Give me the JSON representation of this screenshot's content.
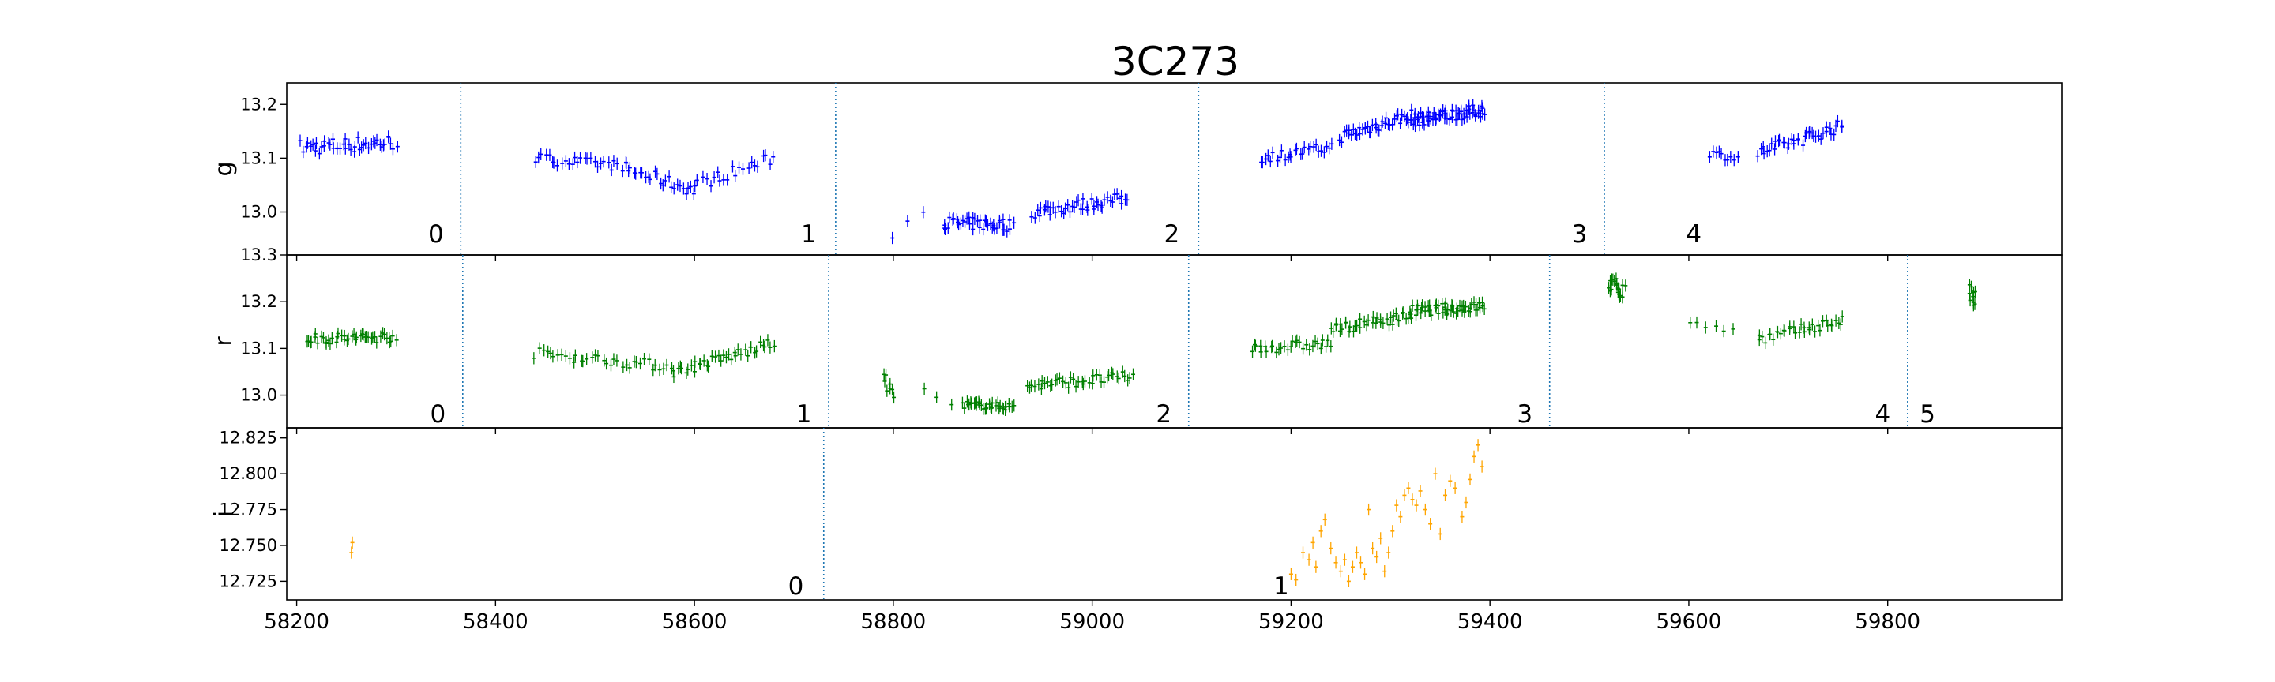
{
  "figure_title": "3C273",
  "chart_data": [
    {
      "type": "scatter",
      "title": "3C273",
      "ylabel": "g",
      "color": "#0000ff",
      "xlim": [
        58190,
        59975
      ],
      "ylim": [
        12.92,
        13.24
      ],
      "yticks": [
        "13.0",
        "13.1",
        "13.2",
        "13.3"
      ],
      "ytick_values": [
        13.0,
        13.1,
        13.2,
        13.3
      ],
      "grid": false,
      "segment_dividers": [
        58365,
        58742,
        59107,
        59515
      ],
      "segment_labels": [
        {
          "text": "0",
          "x": 58340,
          "y": 12.96
        },
        {
          "text": "1",
          "x": 58715,
          "y": 12.96
        },
        {
          "text": "2",
          "x": 59080,
          "y": 12.96
        },
        {
          "text": "3",
          "x": 59490,
          "y": 12.96
        },
        {
          "text": "4",
          "x": 59605,
          "y": 12.96
        }
      ],
      "point_groups": [
        {
          "x0": 58205,
          "x1": 58300,
          "y0": 13.12,
          "y1": 13.13,
          "n": 45,
          "spread": 0.015
        },
        {
          "x0": 58440,
          "x1": 58530,
          "y0": 13.1,
          "y1": 13.085,
          "n": 28,
          "spread": 0.01
        },
        {
          "x0": 58530,
          "x1": 58600,
          "y0": 13.08,
          "y1": 13.04,
          "n": 25,
          "spread": 0.012
        },
        {
          "x0": 58600,
          "x1": 58680,
          "y0": 13.05,
          "y1": 13.1,
          "n": 22,
          "spread": 0.012
        },
        {
          "x0": 58800,
          "x1": 58830,
          "y0": 12.96,
          "y1": 13.0,
          "n": 3,
          "spread": 0.01
        },
        {
          "x0": 58850,
          "x1": 58920,
          "y0": 12.98,
          "y1": 12.975,
          "n": 40,
          "spread": 0.012
        },
        {
          "x0": 58940,
          "x1": 59035,
          "y0": 13.0,
          "y1": 13.025,
          "n": 45,
          "spread": 0.012
        },
        {
          "x0": 59170,
          "x1": 59240,
          "y0": 13.1,
          "y1": 13.12,
          "n": 28,
          "spread": 0.01
        },
        {
          "x0": 59250,
          "x1": 59320,
          "y0": 13.14,
          "y1": 13.18,
          "n": 40,
          "spread": 0.012
        },
        {
          "x0": 59320,
          "x1": 59395,
          "y0": 13.17,
          "y1": 13.19,
          "n": 70,
          "spread": 0.012
        },
        {
          "x0": 59620,
          "x1": 59650,
          "y0": 13.11,
          "y1": 13.1,
          "n": 10,
          "spread": 0.008
        },
        {
          "x0": 59670,
          "x1": 59755,
          "y0": 13.11,
          "y1": 13.16,
          "n": 40,
          "spread": 0.012
        }
      ]
    },
    {
      "type": "scatter",
      "ylabel": "r",
      "color": "#008000",
      "xlim": [
        58190,
        59975
      ],
      "ylim": [
        12.93,
        13.3
      ],
      "yticks": [
        "13.0",
        "13.1",
        "13.2",
        "13.3"
      ],
      "ytick_values": [
        13.0,
        13.1,
        13.2,
        13.3
      ],
      "grid": false,
      "segment_dividers": [
        58367,
        58735,
        59097,
        59460,
        59820
      ],
      "segment_labels": [
        {
          "text": "0",
          "x": 58342,
          "y": 12.96
        },
        {
          "text": "1",
          "x": 58710,
          "y": 12.96
        },
        {
          "text": "2",
          "x": 59072,
          "y": 12.96
        },
        {
          "text": "3",
          "x": 59435,
          "y": 12.96
        },
        {
          "text": "4",
          "x": 59795,
          "y": 12.96
        },
        {
          "text": "5",
          "x": 59840,
          "y": 12.96
        }
      ],
      "point_groups": [
        {
          "x0": 58210,
          "x1": 58300,
          "y0": 13.12,
          "y1": 13.125,
          "n": 45,
          "spread": 0.012
        },
        {
          "x0": 58440,
          "x1": 58580,
          "y0": 13.09,
          "y1": 13.06,
          "n": 38,
          "spread": 0.012
        },
        {
          "x0": 58580,
          "x1": 58680,
          "y0": 13.05,
          "y1": 13.11,
          "n": 38,
          "spread": 0.012
        },
        {
          "x0": 58790,
          "x1": 58800,
          "y0": 13.04,
          "y1": 13.0,
          "n": 8,
          "spread": 0.015
        },
        {
          "x0": 58830,
          "x1": 58860,
          "y0": 13.01,
          "y1": 12.98,
          "n": 3,
          "spread": 0.008
        },
        {
          "x0": 58870,
          "x1": 58920,
          "y0": 12.98,
          "y1": 12.975,
          "n": 35,
          "spread": 0.008
        },
        {
          "x0": 58935,
          "x1": 59040,
          "y0": 13.02,
          "y1": 13.04,
          "n": 42,
          "spread": 0.012
        },
        {
          "x0": 59160,
          "x1": 59240,
          "y0": 13.1,
          "y1": 13.11,
          "n": 30,
          "spread": 0.012
        },
        {
          "x0": 59240,
          "x1": 59320,
          "y0": 13.14,
          "y1": 13.17,
          "n": 40,
          "spread": 0.012
        },
        {
          "x0": 59320,
          "x1": 59395,
          "y0": 13.18,
          "y1": 13.19,
          "n": 55,
          "spread": 0.012
        },
        {
          "x0": 59520,
          "x1": 59535,
          "y0": 13.24,
          "y1": 13.22,
          "n": 20,
          "spread": 0.018
        },
        {
          "x0": 59600,
          "x1": 59645,
          "y0": 13.16,
          "y1": 13.14,
          "n": 6,
          "spread": 0.015
        },
        {
          "x0": 59670,
          "x1": 59755,
          "y0": 13.12,
          "y1": 13.16,
          "n": 35,
          "spread": 0.012
        },
        {
          "x0": 59882,
          "x1": 59888,
          "y0": 13.22,
          "y1": 13.2,
          "n": 10,
          "spread": 0.02
        }
      ]
    },
    {
      "type": "scatter",
      "ylabel": "i",
      "color": "#ffa500",
      "xlim": [
        58190,
        59975
      ],
      "ylim": [
        12.712,
        12.832
      ],
      "yticks": [
        "12.725",
        "12.750",
        "12.775",
        "12.800",
        "12.825"
      ],
      "ytick_values": [
        12.725,
        12.75,
        12.775,
        12.8,
        12.825
      ],
      "xticks": [
        "58200",
        "58400",
        "58600",
        "58800",
        "59000",
        "59200",
        "59400",
        "59600",
        "59800"
      ],
      "xtick_values": [
        58200,
        58400,
        58600,
        58800,
        59000,
        59200,
        59400,
        59600,
        59800
      ],
      "grid": false,
      "segment_dividers": [
        58730
      ],
      "segment_labels": [
        {
          "text": "0",
          "x": 58702,
          "y": 12.722
        },
        {
          "text": "1",
          "x": 59190,
          "y": 12.722
        }
      ],
      "points": [
        [
          58255,
          12.745
        ],
        [
          58256,
          12.752
        ],
        [
          59200,
          12.73
        ],
        [
          59205,
          12.726
        ],
        [
          59212,
          12.745
        ],
        [
          59218,
          12.74
        ],
        [
          59222,
          12.752
        ],
        [
          59225,
          12.735
        ],
        [
          59230,
          12.76
        ],
        [
          59234,
          12.768
        ],
        [
          59240,
          12.748
        ],
        [
          59245,
          12.738
        ],
        [
          59250,
          12.732
        ],
        [
          59254,
          12.74
        ],
        [
          59258,
          12.725
        ],
        [
          59262,
          12.735
        ],
        [
          59266,
          12.745
        ],
        [
          59270,
          12.738
        ],
        [
          59274,
          12.73
        ],
        [
          59278,
          12.775
        ],
        [
          59282,
          12.748
        ],
        [
          59286,
          12.742
        ],
        [
          59290,
          12.755
        ],
        [
          59294,
          12.732
        ],
        [
          59298,
          12.745
        ],
        [
          59302,
          12.76
        ],
        [
          59306,
          12.778
        ],
        [
          59310,
          12.77
        ],
        [
          59314,
          12.785
        ],
        [
          59318,
          12.79
        ],
        [
          59322,
          12.782
        ],
        [
          59326,
          12.778
        ],
        [
          59330,
          12.788
        ],
        [
          59335,
          12.775
        ],
        [
          59340,
          12.765
        ],
        [
          59345,
          12.8
        ],
        [
          59350,
          12.758
        ],
        [
          59355,
          12.785
        ],
        [
          59360,
          12.795
        ],
        [
          59365,
          12.79
        ],
        [
          59372,
          12.77
        ],
        [
          59376,
          12.78
        ],
        [
          59380,
          12.796
        ],
        [
          59384,
          12.812
        ],
        [
          59388,
          12.82
        ],
        [
          59392,
          12.805
        ]
      ]
    }
  ]
}
